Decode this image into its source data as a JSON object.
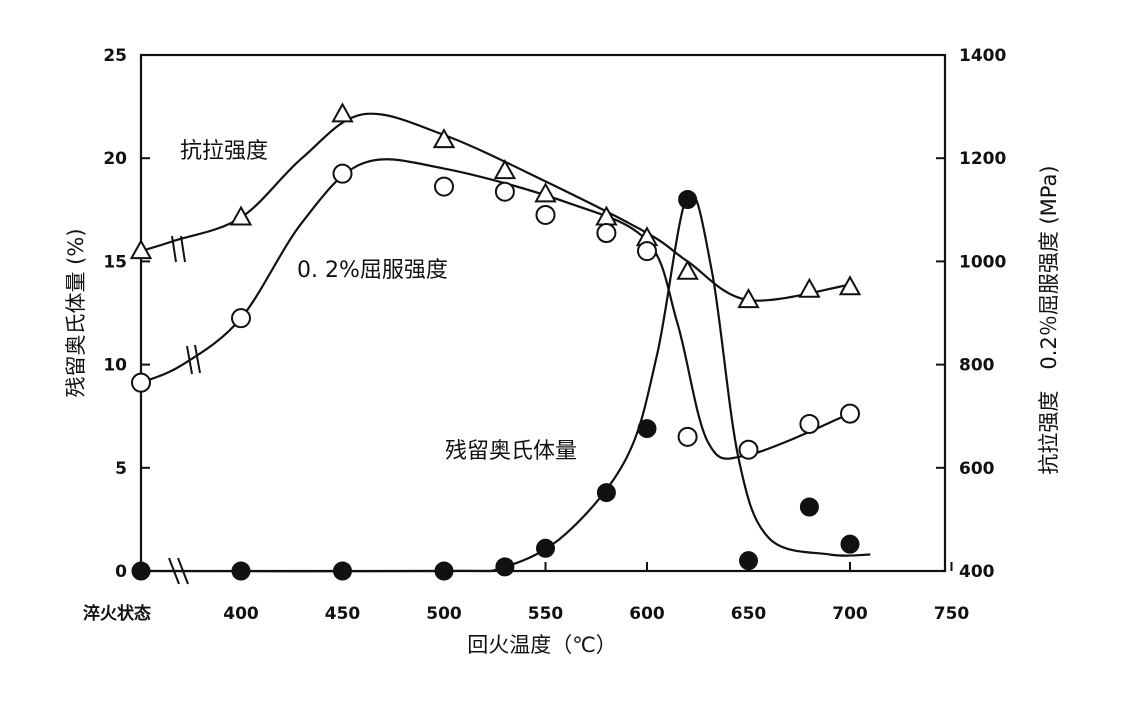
{
  "chart_data": {
    "type": "line",
    "xlabel": "回火温度（℃）",
    "ylabel_left": "残留奥氏体量 (%)",
    "ylabel_right": "抗拉强度　0.2％屈服强度 (MPa)",
    "x_ticks": [
      "淬火状态",
      "400",
      "450",
      "500",
      "550",
      "600",
      "650",
      "700",
      "750"
    ],
    "x_tick_values": [
      340,
      400,
      450,
      500,
      550,
      600,
      650,
      700,
      750
    ],
    "y_left_ticks": [
      0,
      5,
      10,
      15,
      20,
      25
    ],
    "y_left_range": [
      0,
      25
    ],
    "y_right_ticks": [
      400,
      600,
      800,
      1000,
      1200,
      1400
    ],
    "y_right_range": [
      400,
      1400
    ],
    "x_range": [
      340,
      750
    ],
    "axis_break": "between 淬火状态 and 400",
    "series": [
      {
        "name": "抗拉强度",
        "axis": "right",
        "marker": "open-triangle",
        "x": [
          340,
          400,
          450,
          500,
          530,
          550,
          580,
          600,
          620,
          650,
          680,
          700
        ],
        "y": [
          1020,
          1085,
          1285,
          1235,
          1175,
          1130,
          1085,
          1045,
          980,
          925,
          945,
          950
        ]
      },
      {
        "name": "0.2%屈服强度",
        "axis": "right",
        "marker": "open-circle",
        "x": [
          340,
          400,
          450,
          500,
          530,
          550,
          580,
          600,
          620,
          650,
          680,
          700
        ],
        "y": [
          765,
          890,
          1170,
          1145,
          1135,
          1090,
          1055,
          1020,
          660,
          635,
          685,
          705
        ]
      },
      {
        "name": "残留奥氏体量",
        "axis": "left",
        "marker": "filled-circle",
        "x": [
          340,
          400,
          450,
          500,
          530,
          550,
          580,
          600,
          620,
          650,
          680,
          700
        ],
        "y": [
          0,
          0,
          0,
          0,
          0.2,
          1.1,
          3.8,
          6.9,
          18.0,
          0.5,
          3.1,
          1.3
        ]
      }
    ],
    "annotations": [
      "抗拉强度",
      "0. 2%屈服强度",
      "残留奥氏体量"
    ]
  }
}
